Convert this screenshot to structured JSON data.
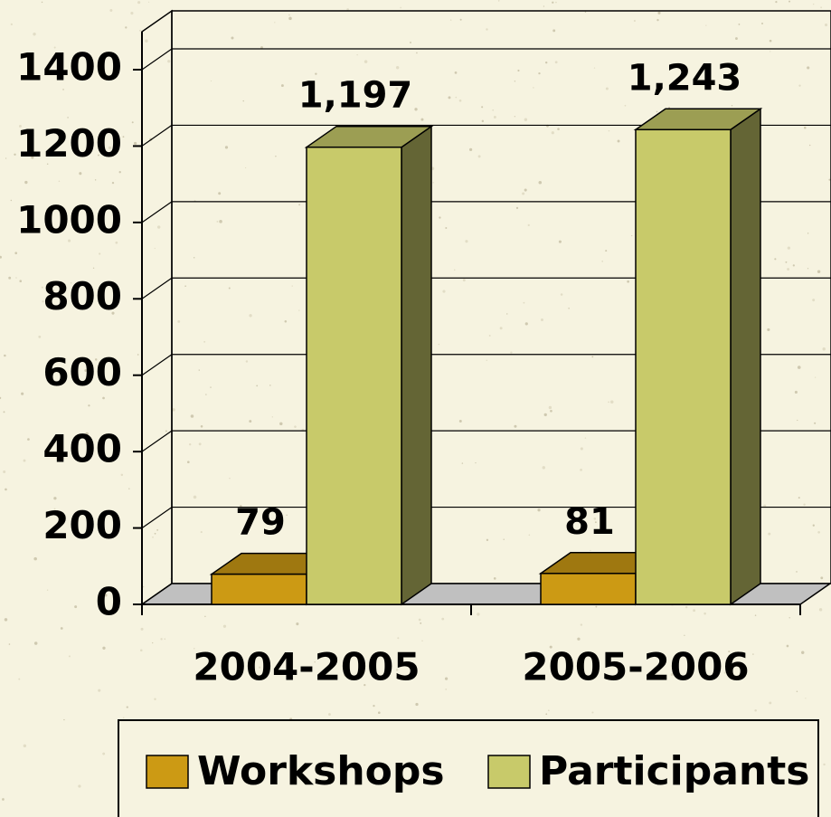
{
  "chart_data": {
    "type": "bar3d",
    "categories": [
      "2004-2005",
      "2005-2006"
    ],
    "series": [
      {
        "name": "Workshops",
        "color": "#cc9a14",
        "values": [
          79,
          81
        ]
      },
      {
        "name": "Participants",
        "color": "#c8ca6a",
        "values": [
          1197,
          1243
        ],
        "value_labels": [
          "1,197",
          "1,243"
        ]
      }
    ],
    "ylim": [
      0,
      1400
    ],
    "yticks": [
      0,
      200,
      400,
      600,
      800,
      1000,
      1200,
      1400
    ],
    "grid": true,
    "legend": "bottom"
  }
}
